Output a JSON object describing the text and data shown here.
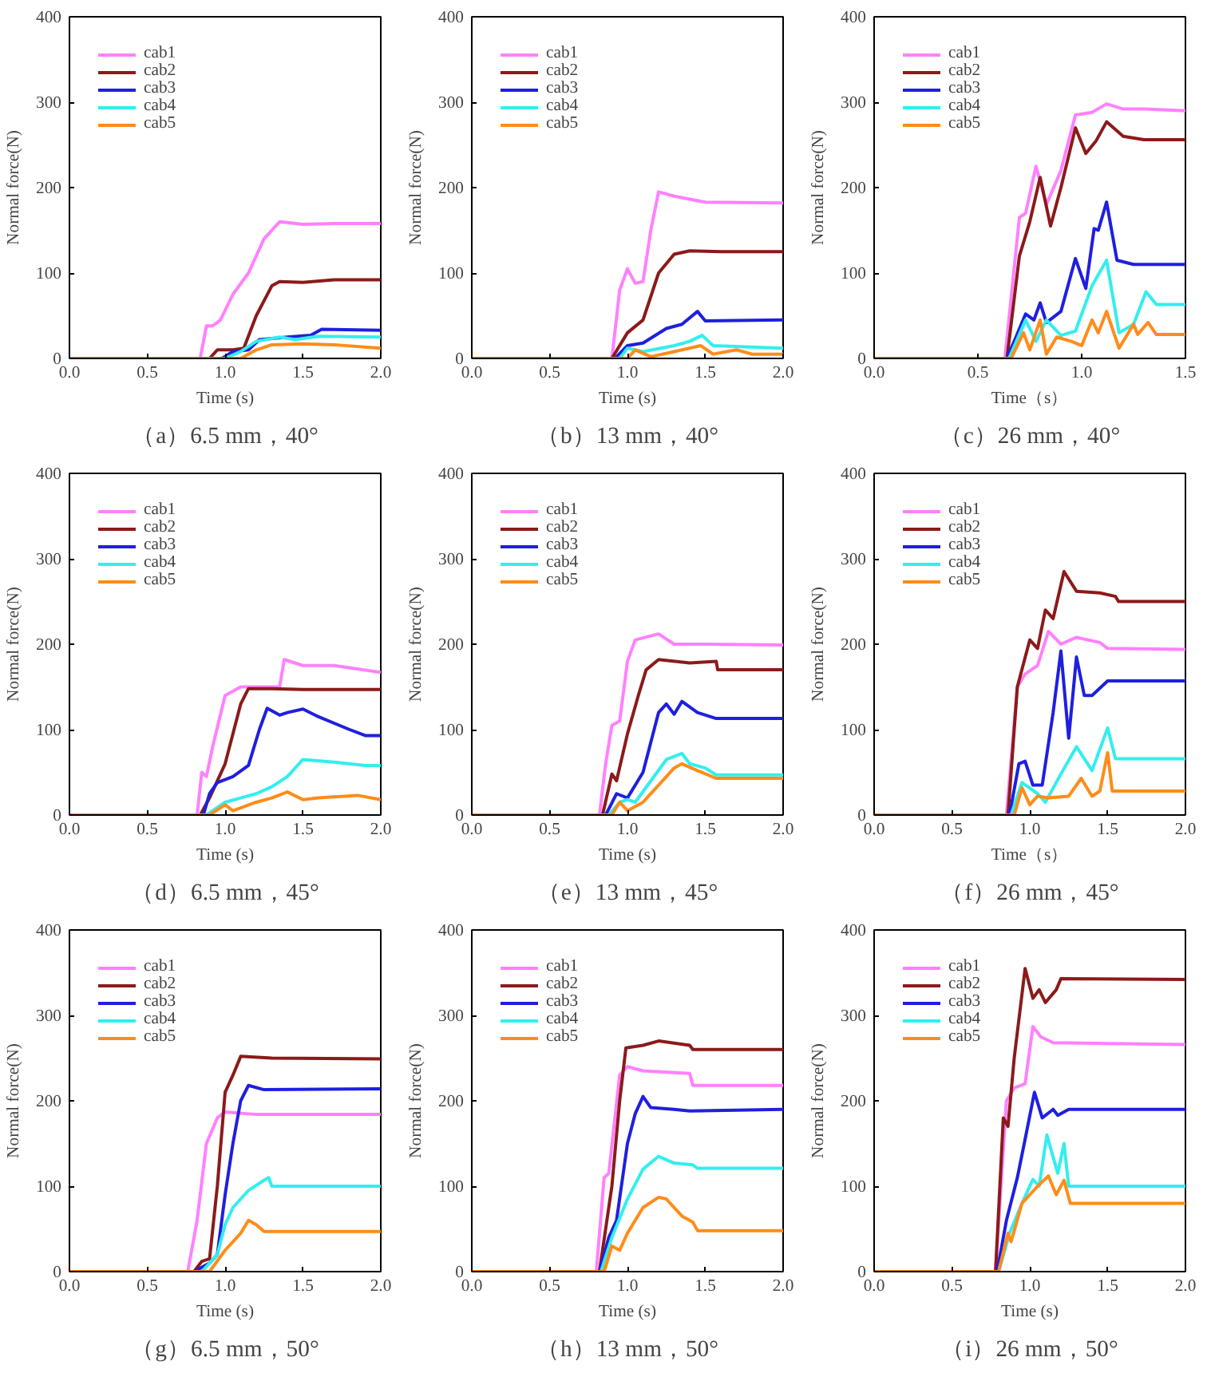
{
  "chart_data": [
    {
      "type": "line",
      "title": "（a）6.5 mm，40°",
      "xlabel": "Time (s)",
      "ylabel": "Normal force(N)",
      "xlim": [
        0,
        2
      ],
      "ylim": [
        0,
        400
      ],
      "xticks": [
        {
          "value": 0,
          "label": "0.0"
        },
        {
          "value": 0.5,
          "label": "0.5"
        },
        {
          "value": 1,
          "label": "1.0"
        },
        {
          "value": 1.5,
          "label": "1.5"
        },
        {
          "value": 2,
          "label": "2.0"
        }
      ],
      "yticks": [
        0,
        100,
        200,
        300,
        400
      ],
      "grid": false,
      "legend": "top left",
      "series": [
        {
          "name": "cab1",
          "color": "#ff80ff",
          "x": [
            0,
            0.84,
            0.88,
            0.92,
            0.97,
            1.05,
            1.15,
            1.25,
            1.35,
            1.5,
            1.7,
            2.0
          ],
          "values": [
            0,
            0,
            38,
            38,
            45,
            75,
            100,
            140,
            160,
            157,
            158,
            158
          ]
        },
        {
          "name": "cab2",
          "color": "#8b1a1a",
          "x": [
            0,
            0.9,
            0.95,
            1.05,
            1.12,
            1.2,
            1.3,
            1.35,
            1.5,
            1.7,
            2.0
          ],
          "values": [
            0,
            0,
            10,
            10,
            12,
            50,
            85,
            90,
            89,
            92,
            92
          ]
        },
        {
          "name": "cab3",
          "color": "#1f1fe0",
          "x": [
            0,
            0.98,
            1.05,
            1.15,
            1.22,
            1.4,
            1.55,
            1.62,
            2.0
          ],
          "values": [
            0,
            0,
            8,
            10,
            22,
            25,
            27,
            34,
            33
          ]
        },
        {
          "name": "cab4",
          "color": "#33eeee",
          "x": [
            0,
            1.0,
            1.1,
            1.2,
            1.35,
            1.45,
            1.6,
            2.0
          ],
          "values": [
            0,
            0,
            8,
            20,
            25,
            22,
            26,
            25
          ]
        },
        {
          "name": "cab5",
          "color": "#ff8c1a",
          "x": [
            0,
            1.1,
            1.2,
            1.3,
            1.5,
            1.7,
            2.0
          ],
          "values": [
            0,
            0,
            10,
            16,
            17,
            16,
            12
          ]
        }
      ]
    },
    {
      "type": "line",
      "title": "（b）13 mm，40°",
      "xlabel": "Time (s)",
      "ylabel": "Normal force(N)",
      "xlim": [
        0,
        2
      ],
      "ylim": [
        0,
        400
      ],
      "xticks": [
        {
          "value": 0,
          "label": "0.0"
        },
        {
          "value": 0.5,
          "label": "0.5"
        },
        {
          "value": 1,
          "label": "1.0"
        },
        {
          "value": 1.5,
          "label": "1.5"
        },
        {
          "value": 2,
          "label": "2.0"
        }
      ],
      "yticks": [
        0,
        100,
        200,
        300,
        400
      ],
      "grid": false,
      "legend": "top left",
      "series": [
        {
          "name": "cab1",
          "color": "#ff80ff",
          "x": [
            0,
            0.9,
            0.95,
            1.0,
            1.05,
            1.1,
            1.15,
            1.2,
            1.3,
            1.5,
            2.0
          ],
          "values": [
            0,
            0,
            80,
            105,
            88,
            90,
            150,
            195,
            190,
            183,
            182
          ]
        },
        {
          "name": "cab2",
          "color": "#8b1a1a",
          "x": [
            0,
            0.9,
            1.0,
            1.1,
            1.2,
            1.3,
            1.4,
            1.6,
            2.0
          ],
          "values": [
            0,
            0,
            30,
            45,
            100,
            122,
            126,
            125,
            125
          ]
        },
        {
          "name": "cab3",
          "color": "#1f1fe0",
          "x": [
            0,
            0.92,
            1.0,
            1.1,
            1.25,
            1.35,
            1.45,
            1.5,
            2.0
          ],
          "values": [
            0,
            0,
            15,
            18,
            35,
            40,
            55,
            44,
            45
          ]
        },
        {
          "name": "cab4",
          "color": "#33eeee",
          "x": [
            0,
            0.95,
            1.0,
            1.1,
            1.3,
            1.4,
            1.48,
            1.55,
            2.0
          ],
          "values": [
            0,
            0,
            12,
            8,
            15,
            20,
            27,
            15,
            12
          ]
        },
        {
          "name": "cab5",
          "color": "#ff8c1a",
          "x": [
            0,
            1.0,
            1.05,
            1.15,
            1.3,
            1.47,
            1.55,
            1.7,
            1.8,
            2.0
          ],
          "values": [
            0,
            0,
            10,
            2,
            8,
            15,
            5,
            10,
            5,
            5
          ]
        }
      ]
    },
    {
      "type": "line",
      "title": "（c）26 mm，40°",
      "xlabel": "Time（s）",
      "ylabel": "Normal force(N)",
      "xlim": [
        0,
        1.5
      ],
      "ylim": [
        0,
        400
      ],
      "xticks": [
        {
          "value": 0,
          "label": "0.0"
        },
        {
          "value": 0.5,
          "label": "0.5"
        },
        {
          "value": 1,
          "label": "1.0"
        },
        {
          "value": 1.5,
          "label": "1.5"
        }
      ],
      "yticks": [
        0,
        100,
        200,
        300,
        400
      ],
      "grid": false,
      "legend": "top left",
      "series": [
        {
          "name": "cab1",
          "color": "#ff80ff",
          "x": [
            0,
            0.63,
            0.7,
            0.73,
            0.78,
            0.83,
            0.9,
            0.97,
            1.05,
            1.12,
            1.2,
            1.3,
            1.5
          ],
          "values": [
            0,
            0,
            165,
            170,
            225,
            180,
            220,
            285,
            288,
            298,
            292,
            292,
            290
          ]
        },
        {
          "name": "cab2",
          "color": "#8b1a1a",
          "x": [
            0,
            0.64,
            0.7,
            0.75,
            0.8,
            0.85,
            0.9,
            0.97,
            1.02,
            1.07,
            1.12,
            1.2,
            1.3,
            1.5
          ],
          "values": [
            0,
            0,
            120,
            160,
            212,
            155,
            200,
            270,
            240,
            255,
            277,
            260,
            256,
            256
          ]
        },
        {
          "name": "cab3",
          "color": "#1f1fe0",
          "x": [
            0,
            0.64,
            0.73,
            0.77,
            0.8,
            0.83,
            0.9,
            0.97,
            1.02,
            1.06,
            1.08,
            1.12,
            1.17,
            1.25,
            1.5
          ],
          "values": [
            0,
            0,
            52,
            45,
            65,
            42,
            55,
            117,
            82,
            152,
            150,
            183,
            115,
            110,
            110
          ]
        },
        {
          "name": "cab4",
          "color": "#33eeee",
          "x": [
            0,
            0.65,
            0.73,
            0.78,
            0.83,
            0.9,
            0.97,
            1.05,
            1.12,
            1.18,
            1.25,
            1.31,
            1.36,
            1.5
          ],
          "values": [
            0,
            0,
            45,
            20,
            45,
            27,
            32,
            85,
            115,
            30,
            40,
            78,
            63,
            63
          ]
        },
        {
          "name": "cab5",
          "color": "#ff8c1a",
          "x": [
            0,
            0.66,
            0.72,
            0.75,
            0.8,
            0.83,
            0.88,
            0.95,
            1.0,
            1.05,
            1.08,
            1.12,
            1.18,
            1.25,
            1.27,
            1.32,
            1.36,
            1.5
          ],
          "values": [
            0,
            0,
            30,
            10,
            45,
            5,
            25,
            20,
            15,
            45,
            30,
            55,
            12,
            40,
            28,
            42,
            28,
            28
          ]
        }
      ]
    },
    {
      "type": "line",
      "title": "（d）6.5 mm，45°",
      "xlabel": "Time (s)",
      "ylabel": "Normal force(N)",
      "xlim": [
        0,
        2
      ],
      "ylim": [
        0,
        400
      ],
      "xticks": [
        {
          "value": 0,
          "label": "0.0"
        },
        {
          "value": 0.5,
          "label": "0.5"
        },
        {
          "value": 1,
          "label": "1.0"
        },
        {
          "value": 1.5,
          "label": "1.5"
        },
        {
          "value": 2,
          "label": "2.0"
        }
      ],
      "yticks": [
        0,
        100,
        200,
        300,
        400
      ],
      "grid": false,
      "legend": "top left",
      "series": [
        {
          "name": "cab1",
          "color": "#ff80ff",
          "x": [
            0,
            0.82,
            0.85,
            0.88,
            0.92,
            1.0,
            1.1,
            1.2,
            1.35,
            1.38,
            1.5,
            1.7,
            2.0
          ],
          "values": [
            0,
            0,
            50,
            45,
            80,
            140,
            150,
            150,
            150,
            182,
            175,
            175,
            167
          ]
        },
        {
          "name": "cab2",
          "color": "#8b1a1a",
          "x": [
            0,
            0.84,
            0.9,
            1.0,
            1.1,
            1.15,
            1.3,
            1.5,
            2.0
          ],
          "values": [
            0,
            0,
            20,
            60,
            130,
            148,
            148,
            147,
            147
          ]
        },
        {
          "name": "cab3",
          "color": "#1f1fe0",
          "x": [
            0,
            0.86,
            0.9,
            0.95,
            1.05,
            1.15,
            1.22,
            1.27,
            1.35,
            1.4,
            1.5,
            1.6,
            1.8,
            1.9,
            2.0
          ],
          "values": [
            0,
            0,
            25,
            38,
            45,
            58,
            100,
            125,
            117,
            120,
            124,
            115,
            100,
            93,
            93
          ]
        },
        {
          "name": "cab4",
          "color": "#33eeee",
          "x": [
            0,
            0.88,
            1.0,
            1.1,
            1.2,
            1.3,
            1.4,
            1.5,
            1.7,
            1.9,
            2.0
          ],
          "values": [
            0,
            0,
            15,
            20,
            25,
            33,
            45,
            65,
            62,
            58,
            58
          ]
        },
        {
          "name": "cab5",
          "color": "#ff8c1a",
          "x": [
            0,
            0.9,
            1.0,
            1.05,
            1.2,
            1.3,
            1.4,
            1.5,
            1.6,
            1.85,
            2.0
          ],
          "values": [
            0,
            0,
            12,
            5,
            15,
            20,
            27,
            18,
            20,
            23,
            18
          ]
        }
      ]
    },
    {
      "type": "line",
      "title": "（e）13 mm，45°",
      "xlabel": "Time (s)",
      "ylabel": "Normal force(N)",
      "xlim": [
        0,
        2
      ],
      "ylim": [
        0,
        400
      ],
      "xticks": [
        {
          "value": 0,
          "label": "0.0"
        },
        {
          "value": 0.5,
          "label": "0.5"
        },
        {
          "value": 1,
          "label": "1.0"
        },
        {
          "value": 1.5,
          "label": "1.5"
        },
        {
          "value": 2,
          "label": "2.0"
        }
      ],
      "yticks": [
        0,
        100,
        200,
        300,
        400
      ],
      "grid": false,
      "legend": "top left",
      "series": [
        {
          "name": "cab1",
          "color": "#ff80ff",
          "x": [
            0,
            0.82,
            0.86,
            0.9,
            0.95,
            1.0,
            1.05,
            1.2,
            1.3,
            1.5,
            2.0
          ],
          "values": [
            0,
            0,
            60,
            105,
            110,
            180,
            205,
            212,
            200,
            200,
            199
          ]
        },
        {
          "name": "cab2",
          "color": "#8b1a1a",
          "x": [
            0,
            0.84,
            0.9,
            0.93,
            1.0,
            1.07,
            1.12,
            1.2,
            1.4,
            1.57,
            1.58,
            2.0
          ],
          "values": [
            0,
            0,
            48,
            40,
            95,
            140,
            170,
            182,
            178,
            180,
            170,
            170
          ]
        },
        {
          "name": "cab3",
          "color": "#1f1fe0",
          "x": [
            0,
            0.86,
            0.93,
            1.0,
            1.1,
            1.2,
            1.25,
            1.3,
            1.35,
            1.45,
            1.57,
            2.0
          ],
          "values": [
            0,
            0,
            25,
            20,
            50,
            120,
            130,
            118,
            133,
            120,
            113,
            113
          ]
        },
        {
          "name": "cab4",
          "color": "#33eeee",
          "x": [
            0,
            0.88,
            0.95,
            1.0,
            1.05,
            1.15,
            1.25,
            1.35,
            1.4,
            1.5,
            1.57,
            2.0
          ],
          "values": [
            0,
            0,
            15,
            18,
            15,
            40,
            65,
            72,
            60,
            55,
            47,
            47
          ]
        },
        {
          "name": "cab5",
          "color": "#ff8c1a",
          "x": [
            0,
            0.9,
            0.95,
            1.0,
            1.1,
            1.2,
            1.3,
            1.35,
            1.45,
            1.57,
            2.0
          ],
          "values": [
            0,
            0,
            15,
            5,
            15,
            35,
            55,
            60,
            52,
            43,
            43
          ]
        }
      ]
    },
    {
      "type": "line",
      "title": "（f）26 mm，45°",
      "xlabel": "Time（s）",
      "ylabel": "Normal force(N)",
      "xlim": [
        0,
        2
      ],
      "ylim": [
        0,
        400
      ],
      "xticks": [
        {
          "value": 0,
          "label": "0.0"
        },
        {
          "value": 0.5,
          "label": "0.5"
        },
        {
          "value": 1,
          "label": "1.0"
        },
        {
          "value": 1.5,
          "label": "1.5"
        },
        {
          "value": 2,
          "label": "2.0"
        }
      ],
      "yticks": [
        0,
        100,
        200,
        300,
        400
      ],
      "grid": false,
      "legend": "top left",
      "series": [
        {
          "name": "cab1",
          "color": "#ff80ff",
          "x": [
            0,
            0.85,
            0.92,
            0.97,
            1.05,
            1.12,
            1.2,
            1.3,
            1.45,
            1.5,
            2.0
          ],
          "values": [
            0,
            0,
            150,
            165,
            175,
            215,
            200,
            208,
            202,
            195,
            194
          ]
        },
        {
          "name": "cab2",
          "color": "#8b1a1a",
          "x": [
            0,
            0.86,
            0.92,
            1.0,
            1.05,
            1.1,
            1.15,
            1.22,
            1.3,
            1.45,
            1.55,
            1.57,
            2.0
          ],
          "values": [
            0,
            0,
            150,
            205,
            195,
            240,
            230,
            285,
            262,
            260,
            256,
            250,
            250
          ]
        },
        {
          "name": "cab3",
          "color": "#1f1fe0",
          "x": [
            0,
            0.87,
            0.93,
            0.97,
            1.02,
            1.08,
            1.15,
            1.2,
            1.25,
            1.3,
            1.35,
            1.4,
            1.5,
            2.0
          ],
          "values": [
            0,
            0,
            60,
            63,
            35,
            35,
            120,
            192,
            90,
            185,
            140,
            140,
            157,
            157
          ]
        },
        {
          "name": "cab4",
          "color": "#33eeee",
          "x": [
            0,
            0.88,
            0.95,
            1.05,
            1.1,
            1.2,
            1.3,
            1.4,
            1.5,
            1.55,
            2.0
          ],
          "values": [
            0,
            0,
            38,
            25,
            15,
            48,
            80,
            52,
            102,
            66,
            66
          ]
        },
        {
          "name": "cab5",
          "color": "#ff8c1a",
          "x": [
            0,
            0.9,
            0.95,
            1.0,
            1.05,
            1.12,
            1.25,
            1.33,
            1.4,
            1.45,
            1.5,
            1.53,
            2.0
          ],
          "values": [
            0,
            0,
            32,
            12,
            22,
            20,
            22,
            43,
            22,
            28,
            73,
            28,
            28
          ]
        }
      ]
    },
    {
      "type": "line",
      "title": "（g）6.5 mm，50°",
      "xlabel": "Time (s)",
      "ylabel": "Normal force(N)",
      "xlim": [
        0,
        2
      ],
      "ylim": [
        0,
        400
      ],
      "xticks": [
        {
          "value": 0,
          "label": "0.0"
        },
        {
          "value": 0.5,
          "label": "0.5"
        },
        {
          "value": 1,
          "label": "1.0"
        },
        {
          "value": 1.5,
          "label": "1.5"
        },
        {
          "value": 2,
          "label": "2.0"
        }
      ],
      "yticks": [
        0,
        100,
        200,
        300,
        400
      ],
      "grid": false,
      "legend": "top left",
      "series": [
        {
          "name": "cab1",
          "color": "#ff80ff",
          "x": [
            0,
            0.76,
            0.82,
            0.88,
            0.95,
            1.0,
            1.2,
            1.5,
            2.0
          ],
          "values": [
            0,
            0,
            60,
            150,
            180,
            187,
            184,
            184,
            184
          ]
        },
        {
          "name": "cab2",
          "color": "#8b1a1a",
          "x": [
            0,
            0.8,
            0.85,
            0.9,
            0.95,
            1.0,
            1.05,
            1.1,
            1.3,
            2.0
          ],
          "values": [
            0,
            0,
            12,
            15,
            100,
            210,
            230,
            252,
            250,
            249
          ]
        },
        {
          "name": "cab3",
          "color": "#1f1fe0",
          "x": [
            0,
            0.8,
            0.9,
            0.95,
            1.0,
            1.05,
            1.1,
            1.15,
            1.25,
            2.0
          ],
          "values": [
            0,
            0,
            10,
            20,
            90,
            150,
            200,
            218,
            213,
            214
          ]
        },
        {
          "name": "cab4",
          "color": "#33eeee",
          "x": [
            0,
            0.85,
            0.95,
            1.0,
            1.05,
            1.15,
            1.25,
            1.28,
            1.3,
            2.0
          ],
          "values": [
            0,
            0,
            20,
            55,
            75,
            95,
            107,
            110,
            100,
            100
          ]
        },
        {
          "name": "cab5",
          "color": "#ff8c1a",
          "x": [
            0,
            0.9,
            1.0,
            1.05,
            1.1,
            1.15,
            1.2,
            1.25,
            2.0
          ],
          "values": [
            0,
            0,
            25,
            35,
            45,
            60,
            55,
            47,
            47
          ]
        }
      ]
    },
    {
      "type": "line",
      "title": "（h）13 mm，50°",
      "xlabel": "Time (s)",
      "ylabel": "Normal force(N)",
      "xlim": [
        0,
        2
      ],
      "ylim": [
        0,
        400
      ],
      "xticks": [
        {
          "value": 0,
          "label": "0.0"
        },
        {
          "value": 0.5,
          "label": "0.5"
        },
        {
          "value": 1,
          "label": "1.0"
        },
        {
          "value": 1.5,
          "label": "1.5"
        },
        {
          "value": 2,
          "label": "2.0"
        }
      ],
      "yticks": [
        0,
        100,
        200,
        300,
        400
      ],
      "grid": false,
      "legend": "top left",
      "series": [
        {
          "name": "cab1",
          "color": "#ff80ff",
          "x": [
            0,
            0.8,
            0.85,
            0.88,
            0.95,
            1.0,
            1.1,
            1.4,
            1.42,
            2.0
          ],
          "values": [
            0,
            0,
            110,
            115,
            230,
            240,
            235,
            232,
            218,
            218
          ]
        },
        {
          "name": "cab2",
          "color": "#8b1a1a",
          "x": [
            0,
            0.82,
            0.9,
            0.95,
            0.99,
            1.1,
            1.2,
            1.4,
            1.42,
            2.0
          ],
          "values": [
            0,
            0,
            100,
            200,
            262,
            265,
            270,
            265,
            260,
            260
          ]
        },
        {
          "name": "cab3",
          "color": "#1f1fe0",
          "x": [
            0,
            0.82,
            0.88,
            0.93,
            1.0,
            1.05,
            1.1,
            1.15,
            1.3,
            1.4,
            2.0
          ],
          "values": [
            0,
            0,
            40,
            60,
            150,
            185,
            205,
            192,
            190,
            188,
            190
          ]
        },
        {
          "name": "cab4",
          "color": "#33eeee",
          "x": [
            0,
            0.83,
            0.9,
            1.0,
            1.1,
            1.2,
            1.3,
            1.42,
            1.45,
            2.0
          ],
          "values": [
            0,
            0,
            40,
            85,
            120,
            135,
            127,
            125,
            121,
            121
          ]
        },
        {
          "name": "cab5",
          "color": "#ff8c1a",
          "x": [
            0,
            0.85,
            0.9,
            0.95,
            1.0,
            1.1,
            1.2,
            1.25,
            1.35,
            1.42,
            1.45,
            2.0
          ],
          "values": [
            0,
            0,
            30,
            25,
            45,
            75,
            87,
            85,
            65,
            58,
            48,
            48
          ]
        }
      ]
    },
    {
      "type": "line",
      "title": "（i）26 mm，50°",
      "xlabel": "Time (s)",
      "ylabel": "Normal force(N)",
      "xlim": [
        0,
        2
      ],
      "ylim": [
        0,
        400
      ],
      "xticks": [
        {
          "value": 0,
          "label": "0.0"
        },
        {
          "value": 0.5,
          "label": "0.5"
        },
        {
          "value": 1,
          "label": "1.0"
        },
        {
          "value": 1.5,
          "label": "1.5"
        },
        {
          "value": 2,
          "label": "2.0"
        }
      ],
      "yticks": [
        0,
        100,
        200,
        300,
        400
      ],
      "grid": false,
      "legend": "top left",
      "series": [
        {
          "name": "cab1",
          "color": "#ff80ff",
          "x": [
            0,
            0.78,
            0.85,
            0.9,
            0.97,
            1.02,
            1.07,
            1.15,
            2.0
          ],
          "values": [
            0,
            0,
            200,
            215,
            220,
            287,
            275,
            268,
            266
          ]
        },
        {
          "name": "cab2",
          "color": "#8b1a1a",
          "x": [
            0,
            0.78,
            0.83,
            0.86,
            0.9,
            0.97,
            1.02,
            1.06,
            1.1,
            1.17,
            1.2,
            2.0
          ],
          "values": [
            0,
            0,
            180,
            170,
            250,
            355,
            320,
            330,
            315,
            330,
            343,
            342
          ]
        },
        {
          "name": "cab3",
          "color": "#1f1fe0",
          "x": [
            0,
            0.79,
            0.85,
            0.92,
            0.97,
            1.03,
            1.08,
            1.15,
            1.18,
            1.25,
            2.0
          ],
          "values": [
            0,
            0,
            60,
            110,
            155,
            210,
            180,
            190,
            183,
            190,
            190
          ]
        },
        {
          "name": "cab4",
          "color": "#33eeee",
          "x": [
            0,
            0.8,
            0.87,
            0.95,
            1.02,
            1.06,
            1.11,
            1.18,
            1.22,
            1.25,
            2.0
          ],
          "values": [
            0,
            0,
            45,
            80,
            108,
            100,
            160,
            115,
            150,
            100,
            100
          ]
        },
        {
          "name": "cab5",
          "color": "#ff8c1a",
          "x": [
            0,
            0.8,
            0.86,
            0.88,
            0.95,
            1.05,
            1.12,
            1.17,
            1.22,
            1.26,
            2.0
          ],
          "values": [
            0,
            0,
            45,
            35,
            80,
            100,
            112,
            90,
            107,
            80,
            80
          ]
        }
      ]
    }
  ]
}
